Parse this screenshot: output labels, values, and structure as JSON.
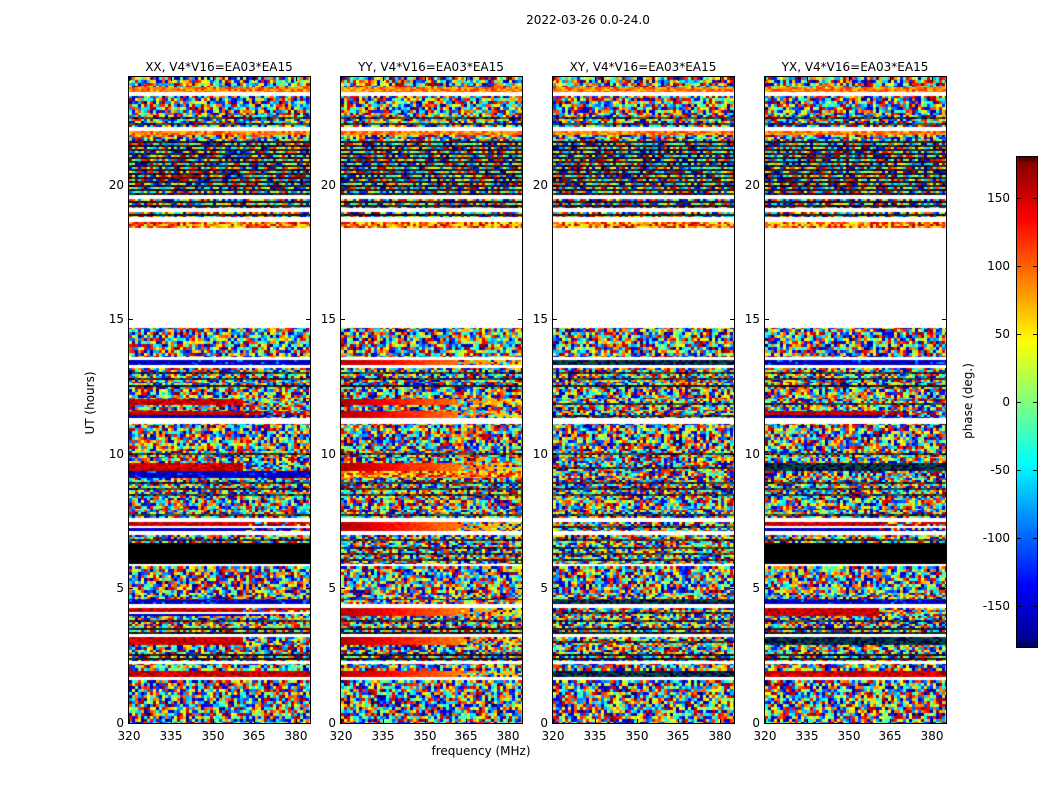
{
  "figure": {
    "title": "2022-03-26 0.0-24.0",
    "background": "#ffffff"
  },
  "chart_data": {
    "type": "heatmap",
    "title": "2022-03-26 0.0-24.0",
    "xlabel": "frequency (MHz)",
    "ylabel": "UT (hours)",
    "x_range": [
      320,
      385
    ],
    "y_range": [
      0,
      24
    ],
    "x_ticks": [
      320,
      335,
      350,
      365,
      380
    ],
    "y_ticks": [
      0,
      5,
      10,
      15,
      20
    ],
    "colormap": "jet",
    "grid": false,
    "colorbar": {
      "label": "phase (deg.)",
      "ticks": [
        150,
        100,
        50,
        0,
        -50,
        -100,
        -150
      ],
      "range": [
        -180,
        180
      ],
      "position": "right"
    },
    "panels": [
      {
        "id": "XX",
        "title": "XX, V4*V16=EA03*EA15"
      },
      {
        "id": "YY",
        "title": "YY, V4*V16=EA03*EA15"
      },
      {
        "id": "XY",
        "title": "XY, V4*V16=EA03*EA15"
      },
      {
        "id": "YX",
        "title": "YX, V4*V16=EA03*EA15"
      }
    ],
    "values_description": "random interferometric phase noise spanning -180..180 deg vs frequency (320-385 MHz) and UT (0-24 h); horizontal white rows are data gaps, saturated rows are coherent-phase scans",
    "bands": [
      {
        "ut": [
          23.45,
          23.62
        ],
        "style": "hotline"
      },
      {
        "ut": [
          23.28,
          23.45
        ],
        "style": "white"
      },
      {
        "ut": [
          22.15,
          22.65
        ],
        "style": "noiselines"
      },
      {
        "ut": [
          22.0,
          22.15
        ],
        "style": "white"
      },
      {
        "ut": [
          21.9,
          22.0
        ],
        "style": "hotline"
      },
      {
        "ut": [
          19.6,
          21.7
        ],
        "style": "striped"
      },
      {
        "ut": [
          19.48,
          19.6
        ],
        "style": "white"
      },
      {
        "ut": [
          19.12,
          19.48
        ],
        "style": "striped"
      },
      {
        "ut": [
          19.0,
          19.12
        ],
        "style": "white"
      },
      {
        "ut": [
          18.8,
          19.0
        ],
        "style": "striped"
      },
      {
        "ut": [
          18.6,
          18.8
        ],
        "style": "white"
      },
      {
        "ut": [
          18.38,
          18.6
        ],
        "style": "hotband"
      },
      {
        "ut": [
          14.68,
          18.38
        ],
        "style": "white"
      },
      {
        "ut": [
          13.47,
          13.58
        ],
        "style": "white"
      },
      {
        "ut": [
          13.3,
          13.47
        ],
        "styles": {
          "XX": "blueband",
          "YY": "hotgrad",
          "XY": "darkline",
          "YX": "blueband"
        }
      },
      {
        "ut": [
          13.18,
          13.3
        ],
        "style": "white"
      },
      {
        "ut": [
          12.62,
          13.18
        ],
        "style": "noiselines"
      },
      {
        "ut": [
          12.42,
          12.62
        ],
        "style": "striped"
      },
      {
        "ut": [
          11.8,
          12.05
        ],
        "styles": {
          "XX": "redleft",
          "YY": "hotgrad",
          "XY": "noiselines",
          "YX": "noiselines"
        }
      },
      {
        "ut": [
          11.32,
          11.58
        ],
        "styles": {
          "XX": "redblue",
          "YY": "hotgrad",
          "XY": "noiselines",
          "YX": "redblue"
        }
      },
      {
        "ut": [
          11.12,
          11.32
        ],
        "style": "white"
      },
      {
        "ut": [
          9.92,
          10.18
        ],
        "style": "noiselines"
      },
      {
        "ut": [
          9.35,
          9.65
        ],
        "styles": {
          "XX": "redleft",
          "YY": "hotgrad",
          "XY": "noiselines",
          "YX": "darkline"
        }
      },
      {
        "ut": [
          9.12,
          9.35
        ],
        "styles": {
          "XX": "blueband",
          "YY": "hotband",
          "XY": "noise",
          "YX": "noise"
        }
      },
      {
        "ut": [
          8.32,
          9.12
        ],
        "style": "noiselines"
      },
      {
        "ut": [
          7.62,
          7.92
        ],
        "style": "noiselines"
      },
      {
        "ut": [
          7.47,
          7.62
        ],
        "style": "white"
      },
      {
        "ut": [
          7.12,
          7.47
        ],
        "styles": {
          "XX": "redblue",
          "YY": "hotgrad",
          "XY": "noiselines",
          "YX": "redblue"
        }
      },
      {
        "ut": [
          6.97,
          7.12
        ],
        "style": "white"
      },
      {
        "ut": [
          6.67,
          6.97
        ],
        "style": "noiselines"
      },
      {
        "ut": [
          5.92,
          6.67
        ],
        "styles": {
          "XX": "black",
          "YY": "noiselines",
          "XY": "noiselines",
          "YX": "black"
        }
      },
      {
        "ut": [
          5.82,
          5.92
        ],
        "style": "white"
      },
      {
        "ut": [
          4.57,
          4.77
        ],
        "style": "noiselines"
      },
      {
        "ut": [
          4.42,
          4.57
        ],
        "styles": {
          "XX": "blueband",
          "YY": "noiselines",
          "XY": "darkline",
          "YX": "blueband"
        }
      },
      {
        "ut": [
          4.28,
          4.42
        ],
        "style": "white"
      },
      {
        "ut": [
          3.97,
          4.28
        ],
        "styles": {
          "XX": "redblue",
          "YY": "hotgrad",
          "XY": "noiselines",
          "YX": "redleft"
        }
      },
      {
        "ut": [
          3.62,
          3.97
        ],
        "style": "noiselines"
      },
      {
        "ut": [
          3.32,
          3.62
        ],
        "style": "striped"
      },
      {
        "ut": [
          3.18,
          3.32
        ],
        "style": "white"
      },
      {
        "ut": [
          2.92,
          3.18
        ],
        "styles": {
          "XX": "redleft",
          "YY": "hotgrad",
          "XY": "noiselines",
          "YX": "darkline"
        }
      },
      {
        "ut": [
          2.32,
          2.62
        ],
        "style": "striped"
      },
      {
        "ut": [
          2.18,
          2.32
        ],
        "style": "white"
      },
      {
        "ut": [
          1.72,
          1.95
        ],
        "styles": {
          "XX": "redband",
          "YY": "hotgrad",
          "XY": "darkline",
          "YX": "redband"
        }
      },
      {
        "ut": [
          1.58,
          1.72
        ],
        "style": "white"
      }
    ]
  }
}
